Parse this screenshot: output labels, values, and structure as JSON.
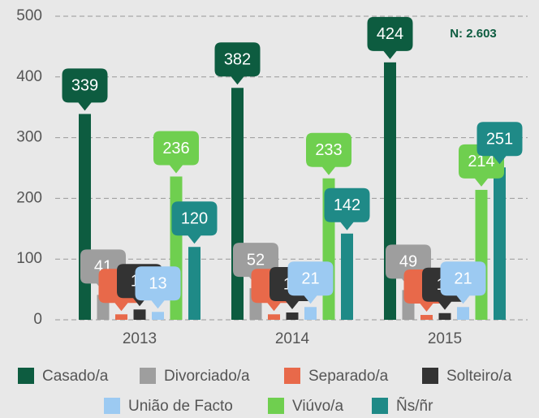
{
  "chart_data": {
    "type": "bar",
    "categories": [
      "2013",
      "2014",
      "2015"
    ],
    "series": [
      {
        "name": "Casado/a",
        "color": "#0d5c40",
        "values": [
          339,
          382,
          424
        ]
      },
      {
        "name": "Divorciado/a",
        "color": "#9e9e9e",
        "values": [
          41,
          52,
          49
        ]
      },
      {
        "name": "Separado/a",
        "color": "#e8694a",
        "values": [
          9,
          9,
          8
        ]
      },
      {
        "name": "Solteiro/a",
        "color": "#333333",
        "values": [
          17,
          12,
          11
        ]
      },
      {
        "name": "União de Facto",
        "color": "#9ccaf2",
        "values": [
          13,
          21,
          21
        ]
      },
      {
        "name": "Viúvo/a",
        "color": "#6fcf4f",
        "values": [
          236,
          233,
          214
        ]
      },
      {
        "name": "Ñs/ñr",
        "color": "#1f8a87",
        "values": [
          120,
          142,
          251
        ]
      }
    ],
    "annotation": "N: 2.603",
    "ylim": [
      0,
      500
    ],
    "yticks": [
      0,
      100,
      200,
      300,
      400,
      500
    ],
    "grid": true,
    "legend": "bottom"
  }
}
